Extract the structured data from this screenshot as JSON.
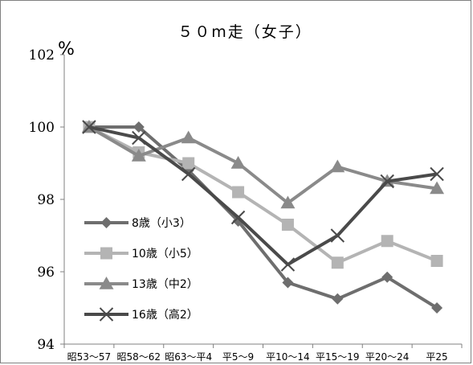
{
  "chart_data": {
    "type": "line",
    "title": "５０m走（女子）",
    "ylabel": "%",
    "xlabel": "",
    "ylim": [
      94,
      102
    ],
    "yticks": [
      94,
      96,
      98,
      100,
      102
    ],
    "categories": [
      "昭53～57",
      "昭58～62",
      "昭63～平4",
      "平5～9",
      "平10～14",
      "平15～19",
      "平20～24",
      "平25"
    ],
    "grid": false,
    "legend_position": "left-middle",
    "series": [
      {
        "name": "8歳（小3）",
        "color": "#6e6e6e",
        "marker": "diamond",
        "values": [
          100,
          100,
          98.8,
          97.4,
          95.7,
          95.25,
          95.85,
          95.0
        ]
      },
      {
        "name": "10歳（小5）",
        "color": "#b4b4b4",
        "marker": "square",
        "values": [
          100,
          99.3,
          99.0,
          98.2,
          97.3,
          96.25,
          96.85,
          96.3
        ]
      },
      {
        "name": "13歳（中2）",
        "color": "#8a8a8a",
        "marker": "triangle",
        "values": [
          100,
          99.2,
          99.7,
          99.0,
          97.9,
          98.9,
          98.5,
          98.3
        ]
      },
      {
        "name": "16歳（高2）",
        "color": "#4a4a4a",
        "marker": "x",
        "values": [
          100,
          99.7,
          98.7,
          97.5,
          96.2,
          97.0,
          98.5,
          98.7
        ]
      }
    ]
  }
}
